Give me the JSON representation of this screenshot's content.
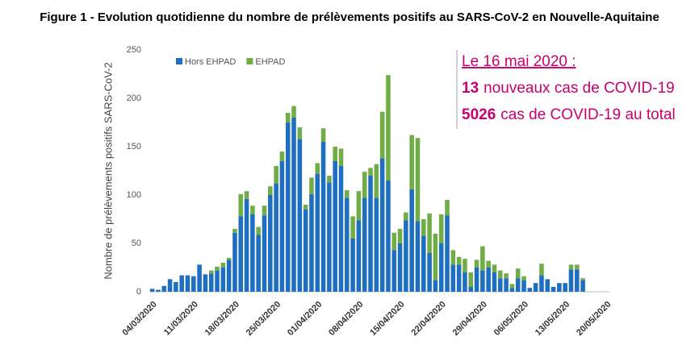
{
  "chart_data": {
    "type": "stacked_bar",
    "title": "Figure 1 - Evolution quotidienne du nombre de prélèvements positifs au SARS-CoV-2 en Nouvelle-Aquitaine",
    "y_label": "Nombre de prélèvements positifs SARS-CoV-2",
    "categories": [
      "04/03/2020",
      null,
      null,
      null,
      null,
      null,
      null,
      "11/03/2020",
      null,
      null,
      null,
      null,
      null,
      null,
      "18/03/2020",
      null,
      null,
      null,
      null,
      null,
      null,
      "25/03/2020",
      null,
      null,
      null,
      null,
      null,
      null,
      "01/04/2020",
      null,
      null,
      null,
      null,
      null,
      null,
      "08/04/2020",
      null,
      null,
      null,
      null,
      null,
      null,
      "15/04/2020",
      null,
      null,
      null,
      null,
      null,
      null,
      "22/04/2020",
      null,
      null,
      null,
      null,
      null,
      null,
      "29/04/2020",
      null,
      null,
      null,
      null,
      null,
      null,
      "06/05/2020",
      null,
      null,
      null,
      null,
      null,
      null,
      "13/05/2020",
      null,
      null,
      null,
      null,
      null,
      null,
      "20/05/2020"
    ],
    "series": [
      {
        "name": "Hors EHPAD",
        "color": "#1f6fc0",
        "values": [
          3,
          2,
          6,
          13,
          10,
          17,
          17,
          16,
          28,
          18,
          19,
          22,
          25,
          33,
          61,
          78,
          96,
          80,
          59,
          79,
          100,
          112,
          135,
          175,
          180,
          158,
          85,
          101,
          122,
          155,
          113,
          135,
          130,
          97,
          55,
          74,
          97,
          120,
          97,
          138,
          115,
          43,
          50,
          74,
          106,
          73,
          58,
          40,
          12,
          50,
          79,
          28,
          28,
          20,
          5,
          25,
          22,
          25,
          20,
          14,
          14,
          4,
          14,
          12,
          4,
          9,
          17,
          13,
          5,
          9,
          9,
          23,
          23,
          12,
          null,
          null,
          null,
          null
        ]
      },
      {
        "name": "EHPAD",
        "color": "#71ad47",
        "values": [
          0,
          0,
          0,
          0,
          0,
          0,
          0,
          0,
          0,
          0,
          3,
          4,
          5,
          2,
          4,
          23,
          8,
          9,
          8,
          10,
          9,
          18,
          10,
          10,
          12,
          12,
          5,
          17,
          11,
          14,
          7,
          15,
          18,
          8,
          23,
          30,
          27,
          8,
          35,
          48,
          109,
          18,
          15,
          8,
          56,
          86,
          17,
          41,
          48,
          30,
          16,
          15,
          8,
          14,
          15,
          8,
          25,
          7,
          8,
          8,
          5,
          4,
          10,
          4,
          0,
          0,
          12,
          0,
          0,
          0,
          0,
          5,
          5,
          2,
          null,
          null,
          null,
          null
        ]
      }
    ],
    "ylim": [
      0,
      250
    ],
    "yticks": [
      0,
      50,
      100,
      150,
      200,
      250
    ],
    "grid": false,
    "legend": "top-left",
    "annotation": {
      "date_line": "Le 16 mai 2020 :",
      "new_cases": {
        "number": "13",
        "text": "nouveaux cas de COVID-19"
      },
      "total_cases": {
        "number": "5026",
        "text": "cas de COVID-19 au total"
      },
      "color": "#c8006e"
    }
  }
}
